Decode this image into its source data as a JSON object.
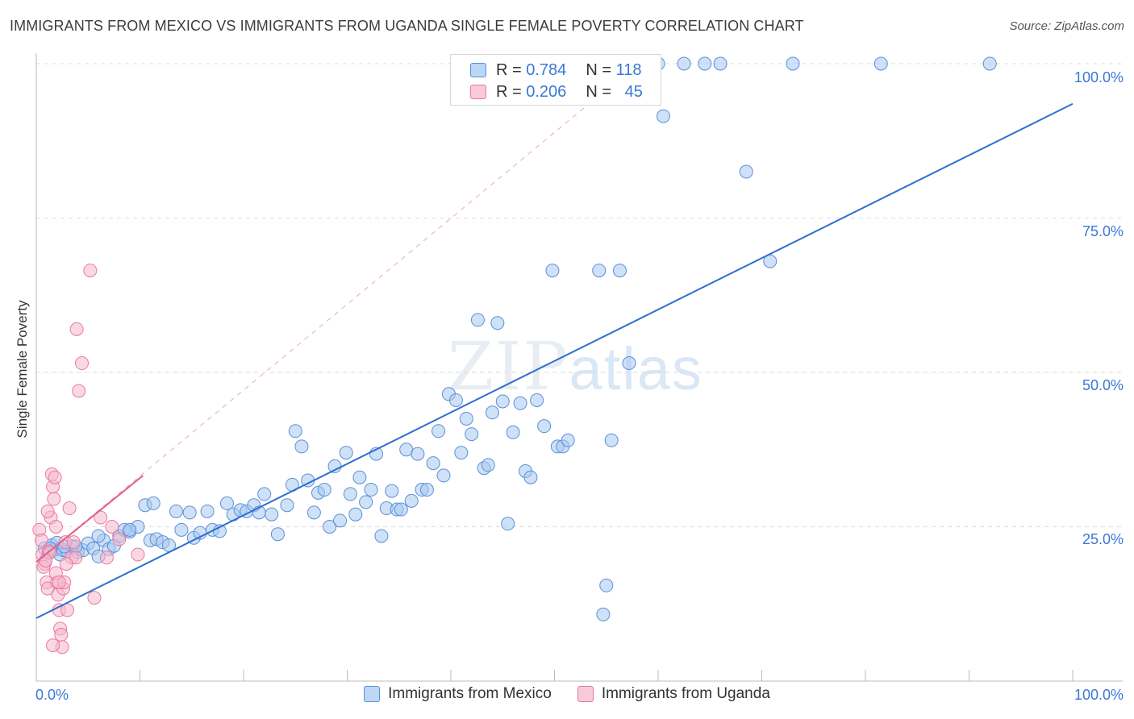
{
  "title": "IMMIGRANTS FROM MEXICO VS IMMIGRANTS FROM UGANDA SINGLE FEMALE POVERTY CORRELATION CHART",
  "source": "Source: ZipAtlas.com",
  "watermark": {
    "main": "ZIP",
    "sub": "atlas"
  },
  "legend_top": {
    "mexico": {
      "r_label": "R =",
      "r_value": "0.784",
      "n_label": "N =",
      "n_value": "118"
    },
    "uganda": {
      "r_label": "R =",
      "r_value": "0.206",
      "n_label": "N =",
      "n_value": "45"
    }
  },
  "legend_bottom": {
    "mexico": "Immigrants from Mexico",
    "uganda": "Immigrants from Uganda"
  },
  "colors": {
    "mexico_fill": "#a8c8f0",
    "mexico_stroke": "#5b8fd8",
    "mexico_line": "#2e6fd0",
    "uganda_fill": "#f6b8cc",
    "uganda_stroke": "#e87aa0",
    "uganda_line": "#e0608a",
    "axis_text": "#3a78d4",
    "grid": "#dddddd"
  },
  "chart_data": {
    "type": "scatter",
    "title": "IMMIGRANTS FROM MEXICO VS IMMIGRANTS FROM UGANDA SINGLE FEMALE POVERTY CORRELATION CHART",
    "xlabel": "",
    "ylabel": "Single Female Poverty",
    "xlim": [
      0,
      100
    ],
    "ylim": [
      0,
      100
    ],
    "x_tick_labels": [
      "0.0%",
      "100.0%"
    ],
    "y_ticks": [
      25,
      50,
      75,
      100
    ],
    "y_tick_labels": [
      "25.0%",
      "50.0%",
      "75.0%",
      "100.0%"
    ],
    "series": [
      {
        "name": "Immigrants from Mexico",
        "trend": {
          "x": [
            0,
            100
          ],
          "y": [
            10.2,
            93.5
          ]
        },
        "points": [
          [
            0.8,
            21.5
          ],
          [
            1.2,
            20.8
          ],
          [
            1.5,
            22.0
          ],
          [
            1.8,
            21.3
          ],
          [
            2.0,
            22.4
          ],
          [
            2.3,
            20.5
          ],
          [
            2.6,
            21.2
          ],
          [
            3.0,
            21.0
          ],
          [
            3.5,
            21.8
          ],
          [
            4.0,
            20.9
          ],
          [
            4.5,
            21.2
          ],
          [
            5.0,
            22.3
          ],
          [
            5.5,
            21.5
          ],
          [
            6.0,
            20.2
          ],
          [
            6.5,
            22.8
          ],
          [
            7.0,
            21.4
          ],
          [
            7.5,
            21.9
          ],
          [
            8.0,
            23.5
          ],
          [
            8.5,
            24.5
          ],
          [
            9.0,
            24.2
          ],
          [
            9.8,
            25.0
          ],
          [
            10.5,
            28.5
          ],
          [
            11.0,
            22.8
          ],
          [
            11.6,
            23.0
          ],
          [
            12.2,
            22.5
          ],
          [
            12.8,
            22.0
          ],
          [
            13.5,
            27.5
          ],
          [
            14.0,
            24.5
          ],
          [
            14.8,
            27.3
          ],
          [
            15.2,
            23.2
          ],
          [
            15.8,
            24.0
          ],
          [
            16.5,
            27.5
          ],
          [
            17.0,
            24.5
          ],
          [
            17.7,
            24.3
          ],
          [
            18.4,
            28.8
          ],
          [
            19.0,
            27.0
          ],
          [
            19.7,
            27.7
          ],
          [
            20.3,
            27.5
          ],
          [
            21.0,
            28.5
          ],
          [
            21.5,
            27.3
          ],
          [
            22.0,
            30.3
          ],
          [
            22.7,
            27.0
          ],
          [
            23.3,
            23.8
          ],
          [
            24.2,
            28.5
          ],
          [
            24.7,
            31.8
          ],
          [
            25.0,
            40.5
          ],
          [
            25.6,
            38.0
          ],
          [
            26.2,
            32.5
          ],
          [
            26.8,
            27.3
          ],
          [
            27.2,
            30.5
          ],
          [
            27.8,
            31.0
          ],
          [
            28.3,
            25.0
          ],
          [
            28.8,
            34.8
          ],
          [
            29.3,
            26.0
          ],
          [
            29.9,
            37.0
          ],
          [
            30.3,
            30.3
          ],
          [
            30.8,
            27.0
          ],
          [
            31.2,
            33.0
          ],
          [
            31.8,
            29.0
          ],
          [
            32.3,
            31.0
          ],
          [
            32.8,
            36.8
          ],
          [
            33.3,
            23.5
          ],
          [
            33.8,
            28.0
          ],
          [
            34.3,
            30.8
          ],
          [
            34.8,
            27.8
          ],
          [
            35.2,
            27.8
          ],
          [
            35.7,
            37.5
          ],
          [
            36.2,
            29.2
          ],
          [
            36.8,
            36.8
          ],
          [
            37.2,
            31.0
          ],
          [
            37.7,
            31.0
          ],
          [
            38.3,
            35.3
          ],
          [
            38.8,
            40.5
          ],
          [
            39.3,
            33.3
          ],
          [
            39.8,
            46.5
          ],
          [
            40.5,
            45.5
          ],
          [
            41.0,
            37.0
          ],
          [
            41.5,
            42.5
          ],
          [
            42.0,
            40.0
          ],
          [
            42.6,
            58.5
          ],
          [
            43.2,
            34.5
          ],
          [
            43.6,
            35.0
          ],
          [
            44.0,
            43.5
          ],
          [
            44.5,
            58.0
          ],
          [
            45.0,
            45.3
          ],
          [
            45.5,
            25.5
          ],
          [
            46.0,
            40.3
          ],
          [
            46.7,
            45.0
          ],
          [
            47.2,
            34.0
          ],
          [
            47.7,
            33.0
          ],
          [
            48.3,
            45.5
          ],
          [
            49.0,
            41.3
          ],
          [
            50.3,
            38.0
          ],
          [
            50.8,
            38.0
          ],
          [
            51.3,
            39.0
          ],
          [
            49.8,
            66.5
          ],
          [
            54.3,
            66.5
          ],
          [
            55.5,
            39.0
          ],
          [
            56.3,
            66.5
          ],
          [
            57.2,
            51.5
          ],
          [
            60.0,
            100
          ],
          [
            62.5,
            100
          ],
          [
            64.5,
            100
          ],
          [
            66.0,
            100
          ],
          [
            60.5,
            91.5
          ],
          [
            68.5,
            82.5
          ],
          [
            70.8,
            68.0
          ],
          [
            73.0,
            100
          ],
          [
            81.5,
            100
          ],
          [
            92.0,
            100
          ],
          [
            55.0,
            15.5
          ],
          [
            54.7,
            10.8
          ],
          [
            6.0,
            23.5
          ],
          [
            2.7,
            21.8
          ],
          [
            3.8,
            21.8
          ],
          [
            9.0,
            24.5
          ],
          [
            11.3,
            28.8
          ],
          [
            1.3,
            21.5
          ]
        ]
      },
      {
        "name": "Immigrants from Uganda",
        "trend": {
          "x": [
            0,
            10.3
          ],
          "y": [
            19.3,
            33.3
          ]
        },
        "points": [
          [
            0.3,
            24.5
          ],
          [
            0.5,
            22.8
          ],
          [
            0.6,
            20.5
          ],
          [
            0.8,
            19.0
          ],
          [
            1.0,
            16.0
          ],
          [
            1.1,
            15.0
          ],
          [
            1.2,
            21.0
          ],
          [
            1.3,
            20.8
          ],
          [
            1.4,
            26.5
          ],
          [
            1.5,
            33.5
          ],
          [
            1.6,
            31.5
          ],
          [
            1.7,
            29.5
          ],
          [
            1.8,
            33.0
          ],
          [
            1.9,
            25.0
          ],
          [
            2.0,
            16.0
          ],
          [
            2.1,
            14.0
          ],
          [
            2.2,
            11.5
          ],
          [
            2.3,
            8.5
          ],
          [
            2.4,
            7.5
          ],
          [
            2.5,
            5.5
          ],
          [
            2.6,
            15.0
          ],
          [
            2.7,
            16.0
          ],
          [
            2.8,
            22.5
          ],
          [
            3.0,
            11.5
          ],
          [
            3.2,
            28.0
          ],
          [
            3.4,
            20.0
          ],
          [
            3.6,
            22.5
          ],
          [
            3.8,
            20.0
          ],
          [
            3.9,
            57.0
          ],
          [
            4.1,
            47.0
          ],
          [
            4.4,
            51.5
          ],
          [
            5.2,
            66.5
          ],
          [
            5.6,
            13.5
          ],
          [
            6.2,
            26.5
          ],
          [
            6.8,
            20.0
          ],
          [
            7.3,
            25.0
          ],
          [
            8.0,
            23.0
          ],
          [
            9.8,
            20.5
          ],
          [
            0.7,
            18.5
          ],
          [
            0.9,
            19.5
          ],
          [
            1.1,
            27.5
          ],
          [
            1.6,
            5.8
          ],
          [
            1.9,
            17.5
          ],
          [
            2.2,
            16.0
          ],
          [
            2.9,
            19.0
          ]
        ]
      }
    ]
  }
}
